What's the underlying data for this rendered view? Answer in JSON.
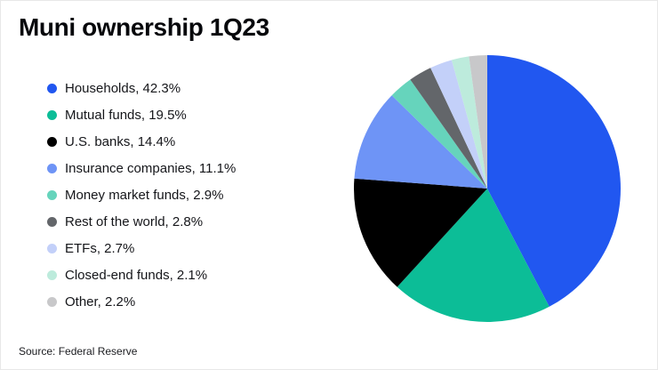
{
  "title": "Muni ownership 1Q23",
  "source": "Source: Federal Reserve",
  "chart_data": {
    "type": "pie",
    "title": "Muni ownership 1Q23",
    "legend_position": "left",
    "start_angle_deg": -90,
    "direction": "clockwise",
    "slices": [
      {
        "label": "Households",
        "value": 42.3,
        "color": "#2157f0"
      },
      {
        "label": "Mutual funds",
        "value": 19.5,
        "color": "#0cbd97"
      },
      {
        "label": "U.S. banks",
        "value": 14.4,
        "color": "#000000"
      },
      {
        "label": "Insurance companies",
        "value": 11.1,
        "color": "#6e94f6"
      },
      {
        "label": "Money market funds",
        "value": 2.9,
        "color": "#66d4bc"
      },
      {
        "label": "Rest of the world",
        "value": 2.8,
        "color": "#63666a"
      },
      {
        "label": "ETFs",
        "value": 2.7,
        "color": "#c3d0f9"
      },
      {
        "label": "Closed-end funds",
        "value": 2.1,
        "color": "#bdebdc"
      },
      {
        "label": "Other",
        "value": 2.2,
        "color": "#c8c8ca"
      }
    ]
  }
}
